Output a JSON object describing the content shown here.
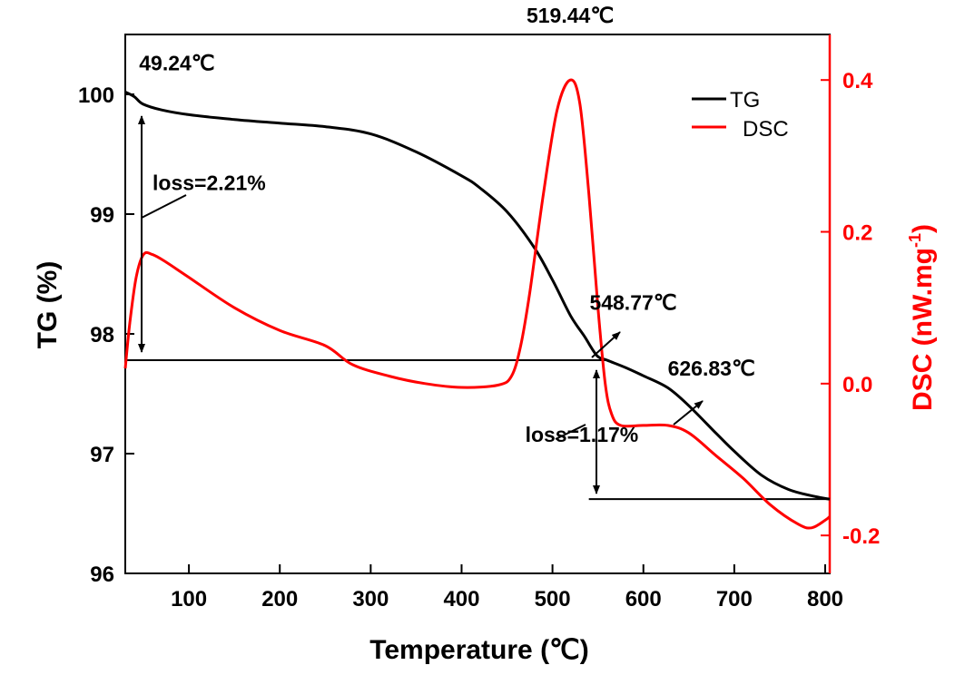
{
  "chart_data": {
    "type": "line",
    "x_axis": {
      "label": "Temperature (℃)",
      "range": [
        30,
        805
      ],
      "ticks": [
        100,
        200,
        300,
        400,
        500,
        600,
        700,
        800
      ]
    },
    "y_left": {
      "label": "TG (%)",
      "range": [
        96,
        100.5
      ],
      "ticks": [
        96,
        97,
        98,
        99,
        100
      ],
      "color": "#000000"
    },
    "y_right": {
      "label_main": "DSC (nW.mg",
      "label_sup": "-1",
      "label_close": ")",
      "range": [
        -0.25,
        0.46
      ],
      "ticks": [
        -0.2,
        0.0,
        0.2,
        0.4
      ],
      "tick_labels": [
        "-0.2",
        "0.0",
        "0.2",
        "0.4"
      ],
      "color": "#ff0000"
    },
    "legend": {
      "placement": "top-right"
    },
    "series": [
      {
        "name": "TG",
        "axis": "left",
        "color": "#000000",
        "points": [
          [
            30,
            100.02
          ],
          [
            40,
            99.98
          ],
          [
            49.24,
            99.92
          ],
          [
            70,
            99.87
          ],
          [
            100,
            99.83
          ],
          [
            150,
            99.79
          ],
          [
            200,
            99.76
          ],
          [
            250,
            99.73
          ],
          [
            300,
            99.67
          ],
          [
            350,
            99.52
          ],
          [
            400,
            99.32
          ],
          [
            420,
            99.22
          ],
          [
            450,
            99.02
          ],
          [
            480,
            98.72
          ],
          [
            500,
            98.45
          ],
          [
            520,
            98.15
          ],
          [
            535,
            97.98
          ],
          [
            548.77,
            97.82
          ],
          [
            560,
            97.78
          ],
          [
            580,
            97.72
          ],
          [
            600,
            97.65
          ],
          [
            626.83,
            97.55
          ],
          [
            650,
            97.4
          ],
          [
            680,
            97.17
          ],
          [
            700,
            97.02
          ],
          [
            730,
            96.82
          ],
          [
            760,
            96.7
          ],
          [
            790,
            96.64
          ],
          [
            805,
            96.62
          ]
        ]
      },
      {
        "name": "DSC",
        "axis": "right",
        "color": "#ff0000",
        "points": [
          [
            30,
            0.02
          ],
          [
            35,
            0.08
          ],
          [
            42,
            0.14
          ],
          [
            50,
            0.17
          ],
          [
            60,
            0.17
          ],
          [
            75,
            0.16
          ],
          [
            100,
            0.14
          ],
          [
            150,
            0.1
          ],
          [
            200,
            0.07
          ],
          [
            250,
            0.05
          ],
          [
            280,
            0.025
          ],
          [
            320,
            0.01
          ],
          [
            360,
            0.0
          ],
          [
            400,
            -0.005
          ],
          [
            440,
            -0.002
          ],
          [
            455,
            0.01
          ],
          [
            465,
            0.05
          ],
          [
            475,
            0.12
          ],
          [
            490,
            0.25
          ],
          [
            505,
            0.36
          ],
          [
            519.44,
            0.4
          ],
          [
            530,
            0.37
          ],
          [
            540,
            0.25
          ],
          [
            550,
            0.1
          ],
          [
            558,
            0.0
          ],
          [
            565,
            -0.04
          ],
          [
            575,
            -0.055
          ],
          [
            600,
            -0.055
          ],
          [
            626.83,
            -0.055
          ],
          [
            650,
            -0.065
          ],
          [
            680,
            -0.095
          ],
          [
            710,
            -0.125
          ],
          [
            740,
            -0.16
          ],
          [
            770,
            -0.185
          ],
          [
            785,
            -0.19
          ],
          [
            800,
            -0.18
          ],
          [
            805,
            -0.175
          ]
        ]
      }
    ],
    "reference_lines": [
      {
        "axis": "left",
        "y": 97.78,
        "x_from": 30,
        "x_to": 560
      },
      {
        "axis": "left",
        "y": 96.62,
        "x_from": 540,
        "x_to": 805
      }
    ],
    "annotations": [
      {
        "text": "49.24℃",
        "x": 49.24,
        "y_left": 100.2
      },
      {
        "text": "519.44℃",
        "x": 519.44,
        "y_left": 100.6
      },
      {
        "text": "548.77℃",
        "x": 548.77,
        "y_left": 98.2
      },
      {
        "text": "626.83℃",
        "x": 626.83,
        "y_left": 97.65
      },
      {
        "text": "loss=2.21%",
        "x": 60,
        "y_left": 99.2
      },
      {
        "text": "loss=1.17%",
        "x": 470,
        "y_left": 97.1
      }
    ]
  }
}
